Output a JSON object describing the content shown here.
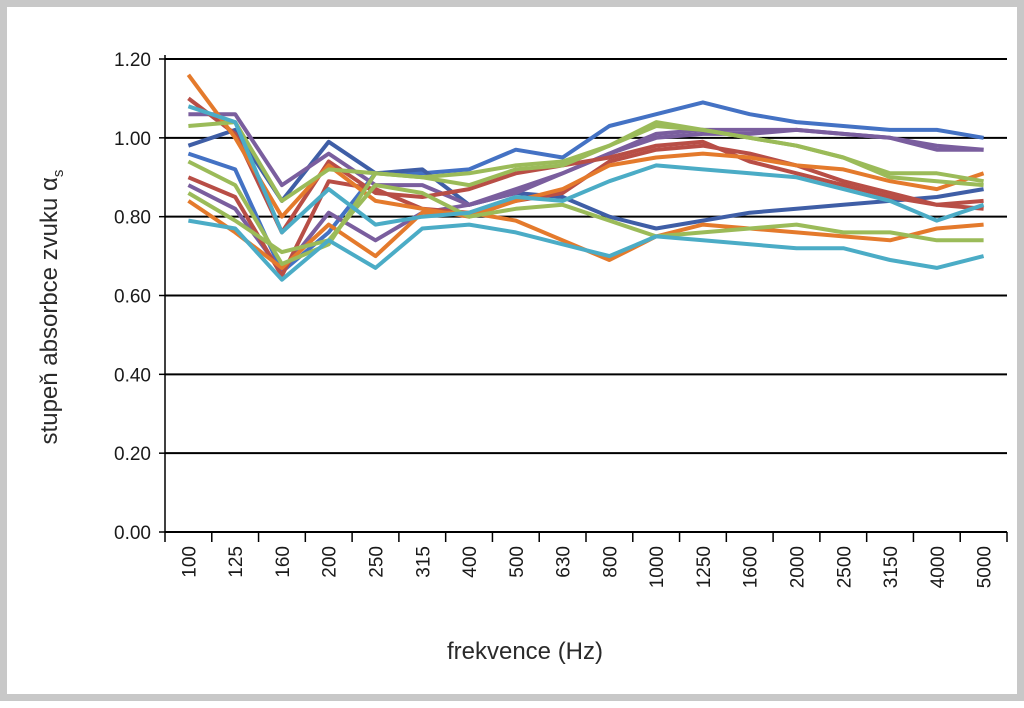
{
  "chart_data": {
    "type": "line",
    "xlabel": "frekvence (Hz)",
    "ylabel": "stupeň absorbce zvuku α",
    "ylabel_subscript": "s",
    "categories": [
      "100",
      "125",
      "160",
      "200",
      "250",
      "315",
      "400",
      "500",
      "630",
      "800",
      "1000",
      "1250",
      "1600",
      "2000",
      "2500",
      "3150",
      "4000",
      "5000"
    ],
    "y_tick_labels": [
      "0.00",
      "0.20",
      "0.40",
      "0.60",
      "0.80",
      "1.00",
      "1.20"
    ],
    "ylim": [
      0,
      1.2
    ],
    "grid": "horizontal",
    "legend": "none",
    "series": [
      {
        "color": "#4472c4",
        "values": [
          0.96,
          0.92,
          0.66,
          0.76,
          0.91,
          0.91,
          0.92,
          0.97,
          0.95,
          1.03,
          1.06,
          1.09,
          1.06,
          1.04,
          1.03,
          1.02,
          1.02,
          1.0
        ]
      },
      {
        "color": "#3f5ea6",
        "values": [
          0.98,
          1.02,
          0.84,
          0.99,
          0.91,
          0.92,
          0.83,
          0.86,
          0.85,
          0.8,
          0.77,
          0.79,
          0.81,
          0.82,
          0.83,
          0.84,
          0.85,
          0.87
        ]
      },
      {
        "color": "#7a5e9e",
        "values": [
          1.06,
          1.06,
          0.88,
          0.96,
          0.88,
          0.88,
          0.83,
          0.87,
          0.91,
          0.96,
          1.0,
          1.01,
          1.01,
          1.02,
          1.01,
          1.0,
          0.97,
          0.97
        ]
      },
      {
        "color": "#7a5e9e",
        "values": [
          0.88,
          0.82,
          0.66,
          0.81,
          0.74,
          0.81,
          0.83,
          0.86,
          0.91,
          0.96,
          1.01,
          1.02,
          1.02,
          1.02,
          1.01,
          1.0,
          0.98,
          0.97
        ]
      },
      {
        "color": "#b84e46",
        "values": [
          1.1,
          1.01,
          0.76,
          0.94,
          0.86,
          0.85,
          0.87,
          0.91,
          0.93,
          0.95,
          0.98,
          0.99,
          0.94,
          0.91,
          0.88,
          0.85,
          0.83,
          0.82
        ]
      },
      {
        "color": "#b84e46",
        "values": [
          0.9,
          0.85,
          0.65,
          0.89,
          0.87,
          0.82,
          0.81,
          0.84,
          0.86,
          0.94,
          0.97,
          0.98,
          0.96,
          0.93,
          0.89,
          0.86,
          0.83,
          0.84
        ]
      },
      {
        "color": "#e47a2c",
        "values": [
          1.16,
          1.0,
          0.8,
          0.93,
          0.84,
          0.82,
          0.8,
          0.84,
          0.87,
          0.93,
          0.95,
          0.96,
          0.95,
          0.93,
          0.92,
          0.89,
          0.87,
          0.91
        ]
      },
      {
        "color": "#e47a2c",
        "values": [
          0.84,
          0.76,
          0.67,
          0.78,
          0.7,
          0.81,
          0.81,
          0.79,
          0.74,
          0.69,
          0.75,
          0.78,
          0.77,
          0.76,
          0.75,
          0.74,
          0.77,
          0.78
        ]
      },
      {
        "color": "#9bbb59",
        "values": [
          1.03,
          1.04,
          0.84,
          0.92,
          0.91,
          0.9,
          0.91,
          0.93,
          0.94,
          0.98,
          1.03,
          1.02,
          1.0,
          0.98,
          0.95,
          0.91,
          0.91,
          0.89
        ]
      },
      {
        "color": "#9bbb59",
        "values": [
          0.94,
          0.88,
          0.68,
          0.73,
          0.91,
          0.9,
          0.88,
          0.92,
          0.93,
          0.98,
          1.04,
          1.02,
          1.0,
          0.98,
          0.95,
          0.9,
          0.89,
          0.88
        ]
      },
      {
        "color": "#9bbb59",
        "values": [
          0.86,
          0.79,
          0.71,
          0.74,
          0.88,
          0.86,
          0.8,
          0.82,
          0.83,
          0.79,
          0.75,
          0.76,
          0.77,
          0.78,
          0.76,
          0.76,
          0.74,
          0.74
        ]
      },
      {
        "color": "#4bacc6",
        "values": [
          1.08,
          1.04,
          0.76,
          0.87,
          0.78,
          0.8,
          0.81,
          0.85,
          0.84,
          0.89,
          0.93,
          0.92,
          0.91,
          0.9,
          0.87,
          0.84,
          0.79,
          0.83
        ]
      },
      {
        "color": "#4bacc6",
        "values": [
          0.79,
          0.77,
          0.64,
          0.74,
          0.67,
          0.77,
          0.78,
          0.76,
          0.73,
          0.7,
          0.75,
          0.74,
          0.73,
          0.72,
          0.72,
          0.69,
          0.67,
          0.7
        ]
      }
    ]
  }
}
